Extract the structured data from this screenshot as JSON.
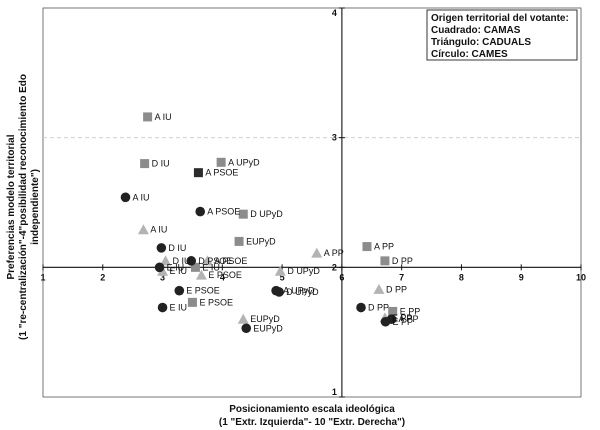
{
  "chart_data": {
    "type": "scatter",
    "xlabel": [
      "Posicionamiento escala ideológica",
      "(1 \"Extr. Izquierda\"- 10 \"Extr. Derecha\")"
    ],
    "ylabel": [
      "Preferencias modelo territorial",
      "(1 \"re-centralización\"-4\"posibilidad  reconocimiento Edo",
      "independiente\")"
    ],
    "xlim": [
      1,
      10
    ],
    "ylim": [
      1,
      4
    ],
    "xticks": [
      "1",
      "2",
      "3",
      "4",
      "5",
      "6",
      "7",
      "8",
      "9",
      "10"
    ],
    "yticks": [
      "1",
      "2",
      "3",
      "4"
    ],
    "cross_at": [
      6,
      2
    ],
    "gridline_y": 3,
    "legend": {
      "title": "Origen territorial del votante:",
      "entries": [
        "Cuadrado: CAMAS",
        "Triángulo: CADUALS",
        "Círculo: CAMES"
      ],
      "placement": "top-right"
    },
    "colors": {
      "square": "#8c8c8c",
      "square_dark": "#2b2b2b",
      "triangle": "#b3b3b3",
      "circle": "#222222"
    },
    "series": [
      {
        "name": "CAMAS",
        "shape": "square",
        "points": [
          {
            "x": 2.75,
            "y": 3.16,
            "label": "A IU"
          },
          {
            "x": 2.7,
            "y": 2.8,
            "label": "D IU"
          },
          {
            "x": 3.98,
            "y": 2.81,
            "label": "A UPyD"
          },
          {
            "x": 3.6,
            "y": 2.73,
            "label": "A PSOE",
            "dark": true
          },
          {
            "x": 4.35,
            "y": 2.41,
            "label": "D UPyD"
          },
          {
            "x": 4.28,
            "y": 2.2,
            "label": "EUPyD"
          },
          {
            "x": 3.55,
            "y": 2.0,
            "label": "E IU"
          },
          {
            "x": 3.5,
            "y": 1.73,
            "label": "E PSOE"
          },
          {
            "x": 6.42,
            "y": 2.16,
            "label": "A PP"
          },
          {
            "x": 6.72,
            "y": 2.05,
            "label": "D PP"
          },
          {
            "x": 6.85,
            "y": 1.66,
            "label": "E PP"
          }
        ]
      },
      {
        "name": "CADUALS",
        "shape": "triangle",
        "points": [
          {
            "x": 2.68,
            "y": 2.29,
            "label": "A IU"
          },
          {
            "x": 3.05,
            "y": 2.05,
            "label": "D IU"
          },
          {
            "x": 3.75,
            "y": 2.05,
            "label": "A PSOE"
          },
          {
            "x": 4.97,
            "y": 1.97,
            "label": "D UPyD"
          },
          {
            "x": 5.58,
            "y": 2.11,
            "label": "A PP"
          },
          {
            "x": 6.62,
            "y": 1.83,
            "label": "D PP"
          },
          {
            "x": 3.0,
            "y": 1.97,
            "label": "E IU"
          },
          {
            "x": 3.65,
            "y": 1.94,
            "label": "E PSOE"
          },
          {
            "x": 4.35,
            "y": 1.6,
            "label": "EUPyD"
          },
          {
            "x": 6.72,
            "y": 1.61,
            "label": "E PP"
          }
        ]
      },
      {
        "name": "CAMES",
        "shape": "circle",
        "points": [
          {
            "x": 2.38,
            "y": 2.54,
            "label": "A IU"
          },
          {
            "x": 3.63,
            "y": 2.43,
            "label": "A PSOE"
          },
          {
            "x": 2.98,
            "y": 2.15,
            "label": "D IU"
          },
          {
            "x": 2.95,
            "y": 2.0,
            "label": "E IU"
          },
          {
            "x": 3.28,
            "y": 1.82,
            "label": "E PSOE"
          },
          {
            "x": 3.48,
            "y": 2.05,
            "label": "D PSOE"
          },
          {
            "x": 4.9,
            "y": 1.82,
            "label": "A UPyD"
          },
          {
            "x": 4.95,
            "y": 1.81,
            "label": "D UPyD"
          },
          {
            "x": 3.0,
            "y": 1.69,
            "label": "E IU"
          },
          {
            "x": 4.4,
            "y": 1.53,
            "label": "EUPyD"
          },
          {
            "x": 6.32,
            "y": 1.69,
            "label": "D PP"
          },
          {
            "x": 6.83,
            "y": 1.6,
            "label": "A PP"
          },
          {
            "x": 6.73,
            "y": 1.58,
            "label": "E PP"
          }
        ]
      }
    ]
  }
}
